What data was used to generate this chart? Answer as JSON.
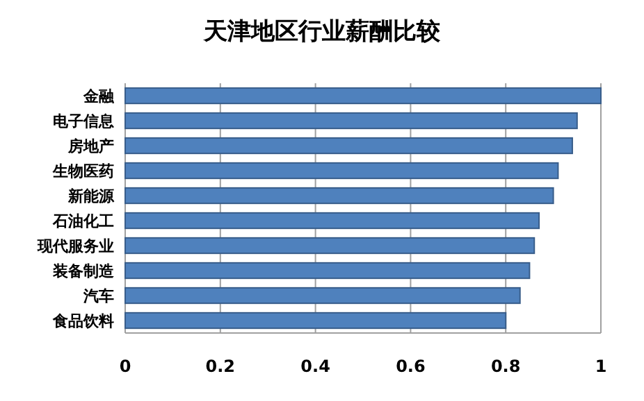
{
  "chart_data": {
    "type": "bar",
    "orientation": "horizontal",
    "title": "天津地区行业薪酬比较",
    "categories": [
      "金融",
      "电子信息",
      "房地产",
      "生物医药",
      "新能源",
      "石油化工",
      "现代服务业",
      "装备制造",
      "汽车",
      "食品饮料"
    ],
    "values": [
      1,
      0.95,
      0.94,
      0.91,
      0.9,
      0.87,
      0.86,
      0.85,
      0.83,
      0.8
    ],
    "color": "#4f81bd",
    "xlim": [
      0,
      1
    ],
    "xticks": [
      0,
      0.2,
      0.4,
      0.6,
      0.8,
      1
    ],
    "grid": "x"
  }
}
